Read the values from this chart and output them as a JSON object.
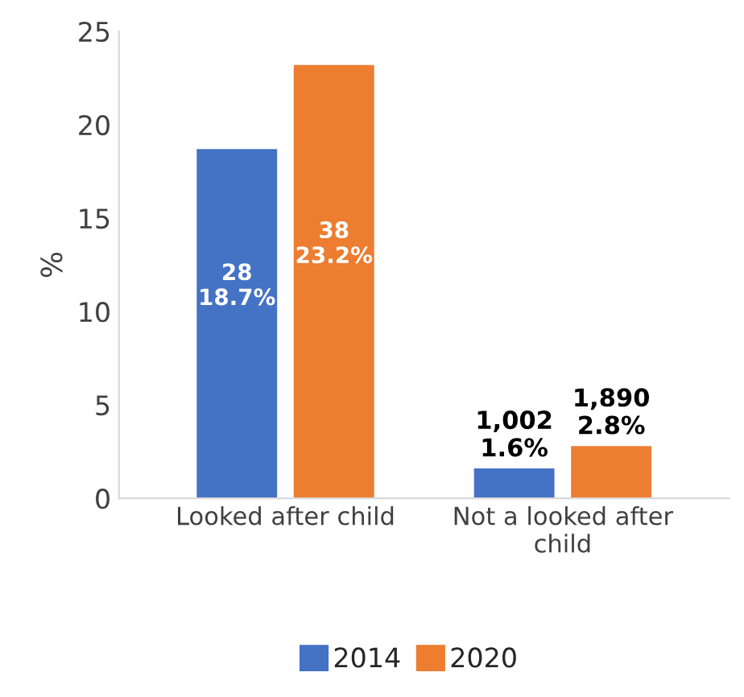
{
  "chart_data": {
    "type": "bar",
    "ylabel": "%",
    "categories": [
      "Looked after child",
      "Not a looked after child"
    ],
    "series": [
      {
        "name": "2014",
        "color": "#4472c4",
        "values": [
          18.7,
          1.6
        ],
        "value_labels": [
          "28\n18.7%",
          "1,002\n1.6%"
        ]
      },
      {
        "name": "2020",
        "color": "#ed7d31",
        "values": [
          23.2,
          2.8
        ],
        "value_labels": [
          "38\n23.2%",
          "1,890\n2.8%"
        ]
      }
    ],
    "ylim": [
      0,
      25
    ],
    "yticks": [
      0,
      5,
      10,
      15,
      20,
      25
    ],
    "grid": false,
    "legend": "bottom"
  }
}
